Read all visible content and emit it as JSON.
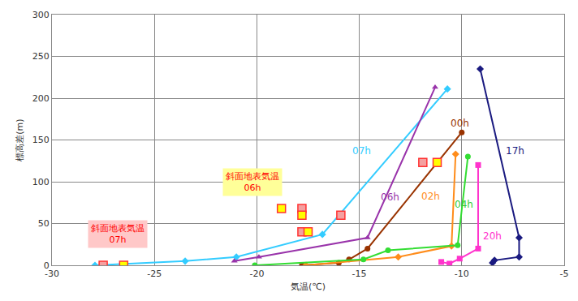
{
  "chart_data": {
    "type": "line",
    "x_label": "気温(℃)",
    "y_label": "標高差(m)",
    "xlim": [
      -30,
      -5
    ],
    "xticks": [
      -30,
      -25,
      -20,
      -15,
      -10,
      -5
    ],
    "ylim": [
      0,
      300
    ],
    "yticks": [
      0,
      50,
      100,
      150,
      200,
      250,
      300
    ],
    "grid": true,
    "series": [
      {
        "name": "07h",
        "color": "#33ccff",
        "marker": "diamond",
        "line_style": "solid",
        "type": "line",
        "x": [
          -27.9,
          -23.5,
          -21.0,
          -16.8,
          -10.7
        ],
        "values": [
          0,
          5,
          10,
          37,
          211
        ]
      },
      {
        "name": "06h",
        "color": "#9933aa",
        "marker": "triangle-up",
        "line_style": "solid",
        "type": "line",
        "x": [
          -21.1,
          -19.9,
          -14.6,
          -11.3
        ],
        "values": [
          5,
          10,
          33,
          213
        ]
      },
      {
        "name": "00h",
        "color": "#993300",
        "marker": "circle",
        "line_style": "solid",
        "type": "line",
        "x": [
          -17.8,
          -16.0,
          -15.5,
          -14.6,
          -10.0
        ],
        "values": [
          0,
          3,
          7,
          20,
          159
        ]
      },
      {
        "name": "02h",
        "color": "#ff8c1a",
        "marker": "diamond",
        "line_style": "solid",
        "type": "line",
        "x": [
          -17.6,
          -13.1,
          -10.5,
          -10.3
        ],
        "values": [
          0,
          10,
          23,
          133
        ]
      },
      {
        "name": "04h",
        "color": "#33dd33",
        "marker": "circle",
        "line_style": "solid",
        "type": "line",
        "x": [
          -20.1,
          -14.8,
          -13.6,
          -10.2,
          -9.7
        ],
        "values": [
          0,
          7,
          18,
          24,
          130
        ]
      },
      {
        "name": "17h",
        "color": "#1a1a80",
        "marker": "diamond",
        "line_style": "solid",
        "type": "line",
        "x": [
          -8.5,
          -8.4,
          -7.2,
          -7.2,
          -9.1
        ],
        "values": [
          3,
          6,
          10,
          33,
          235
        ]
      },
      {
        "name": "20h",
        "color": "#ff33cc",
        "marker": "square",
        "line_style": "solid",
        "type": "line",
        "x": [
          -11.0,
          -10.6,
          -10.1,
          -9.2,
          -9.2
        ],
        "values": [
          4,
          2,
          8,
          20,
          120
        ]
      },
      {
        "name": "斜面地表気温 07h",
        "color": "#f4a0a0",
        "marker": "square",
        "type": "scatter",
        "x": [
          -27.5,
          -17.8,
          -17.8,
          -15.9,
          -11.9
        ],
        "values": [
          0,
          68,
          40,
          60,
          123
        ]
      },
      {
        "name": "斜面地表気温 06h",
        "color": "#ffff00",
        "marker": "square",
        "type": "scatter",
        "x": [
          -26.5,
          -18.8,
          -17.8,
          -17.5,
          -11.2
        ],
        "values": [
          0,
          68,
          60,
          40,
          123
        ]
      }
    ],
    "annotations": [
      {
        "text": "07h",
        "x": -14.9,
        "y": 137,
        "color": "#33ccff"
      },
      {
        "text": "00h",
        "x": -10.1,
        "y": 170,
        "color": "#993300"
      },
      {
        "text": "06h",
        "x": -13.5,
        "y": 82,
        "color": "#9933aa"
      },
      {
        "text": "02h",
        "x": -11.5,
        "y": 83,
        "color": "#ff8c1a"
      },
      {
        "text": "04h",
        "x": -9.9,
        "y": 73,
        "color": "#33cc33"
      },
      {
        "text": "17h",
        "x": -7.4,
        "y": 137,
        "color": "#1a1a80"
      },
      {
        "text": "20h",
        "x": -8.5,
        "y": 35,
        "color": "#ff33cc"
      },
      {
        "lines": [
          "斜面地表気温",
          "06h"
        ],
        "x": -20.2,
        "y": 100,
        "color": "#ff0000",
        "box": "#ffff99"
      },
      {
        "lines": [
          "斜面地表気温",
          "07h"
        ],
        "x": -26.8,
        "y": 37,
        "color": "#ff0000",
        "box": "#ffc8c8"
      }
    ]
  }
}
